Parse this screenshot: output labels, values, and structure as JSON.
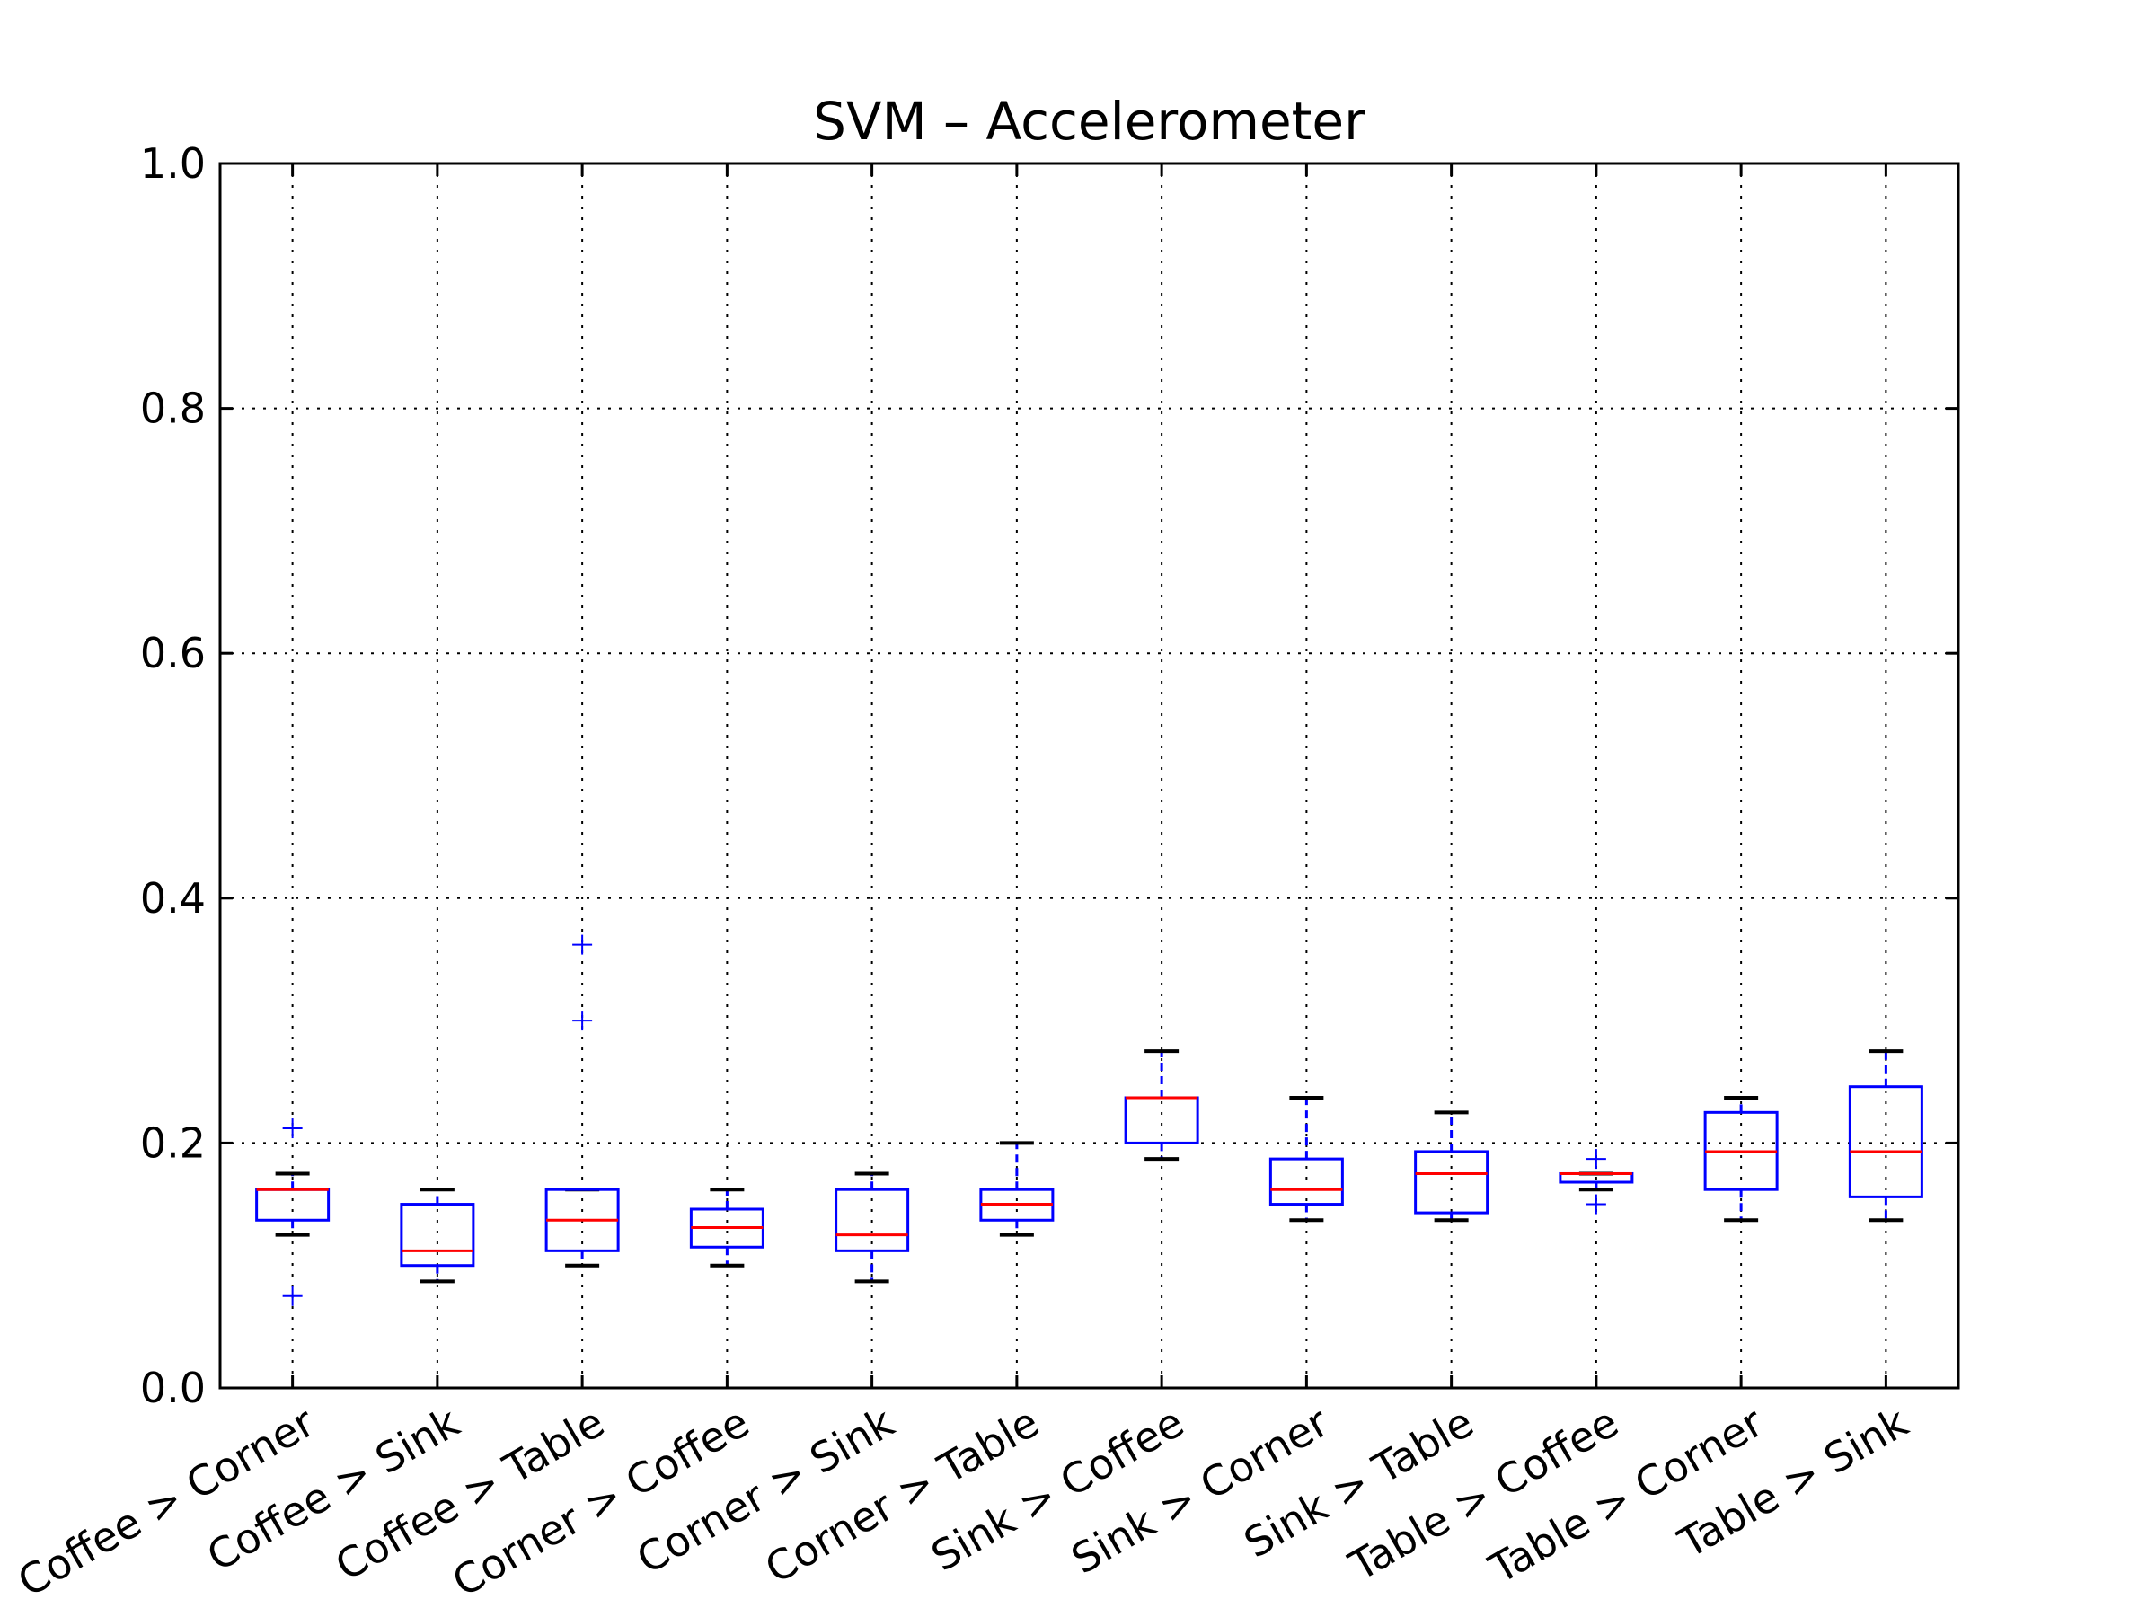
{
  "chart_data": {
    "type": "box",
    "title": "SVM – Accelerometer",
    "xlabel": "",
    "ylabel": "",
    "ylim": [
      0.0,
      1.0
    ],
    "yticks": [
      "0.0",
      "0.2",
      "0.4",
      "0.6",
      "0.8",
      "1.0"
    ],
    "grid": true,
    "categories": [
      "Coffee > Corner",
      "Coffee > Sink",
      "Coffee > Table",
      "Corner > Coffee",
      "Corner > Sink",
      "Corner > Table",
      "Sink > Coffee",
      "Sink > Corner",
      "Sink > Table",
      "Table > Coffee",
      "Table > Corner",
      "Table > Sink"
    ],
    "boxes": [
      {
        "whislo": 0.125,
        "q1": 0.137,
        "med": 0.162,
        "q3": 0.162,
        "whishi": 0.175,
        "fliers": [
          0.212,
          0.075
        ]
      },
      {
        "whislo": 0.087,
        "q1": 0.1,
        "med": 0.112,
        "q3": 0.15,
        "whishi": 0.162,
        "fliers": []
      },
      {
        "whislo": 0.1,
        "q1": 0.112,
        "med": 0.137,
        "q3": 0.162,
        "whishi": 0.162,
        "fliers": [
          0.362,
          0.3
        ]
      },
      {
        "whislo": 0.1,
        "q1": 0.115,
        "med": 0.131,
        "q3": 0.146,
        "whishi": 0.162,
        "fliers": []
      },
      {
        "whislo": 0.087,
        "q1": 0.112,
        "med": 0.125,
        "q3": 0.162,
        "whishi": 0.175,
        "fliers": []
      },
      {
        "whislo": 0.125,
        "q1": 0.137,
        "med": 0.15,
        "q3": 0.162,
        "whishi": 0.2,
        "fliers": []
      },
      {
        "whislo": 0.187,
        "q1": 0.2,
        "med": 0.237,
        "q3": 0.237,
        "whishi": 0.275,
        "fliers": []
      },
      {
        "whislo": 0.137,
        "q1": 0.15,
        "med": 0.162,
        "q3": 0.187,
        "whishi": 0.237,
        "fliers": []
      },
      {
        "whislo": 0.137,
        "q1": 0.143,
        "med": 0.175,
        "q3": 0.193,
        "whishi": 0.225,
        "fliers": []
      },
      {
        "whislo": 0.162,
        "q1": 0.168,
        "med": 0.175,
        "q3": 0.175,
        "whishi": 0.175,
        "fliers": [
          0.187,
          0.15
        ]
      },
      {
        "whislo": 0.137,
        "q1": 0.162,
        "med": 0.193,
        "q3": 0.225,
        "whishi": 0.237,
        "fliers": []
      },
      {
        "whislo": 0.137,
        "q1": 0.156,
        "med": 0.193,
        "q3": 0.246,
        "whishi": 0.275,
        "fliers": []
      }
    ],
    "colors": {
      "box": "#0000ff",
      "median": "#ff0000",
      "whisker": "#0000ff",
      "cap": "#000000",
      "flier": "#0000ff",
      "grid": "#000000"
    }
  }
}
